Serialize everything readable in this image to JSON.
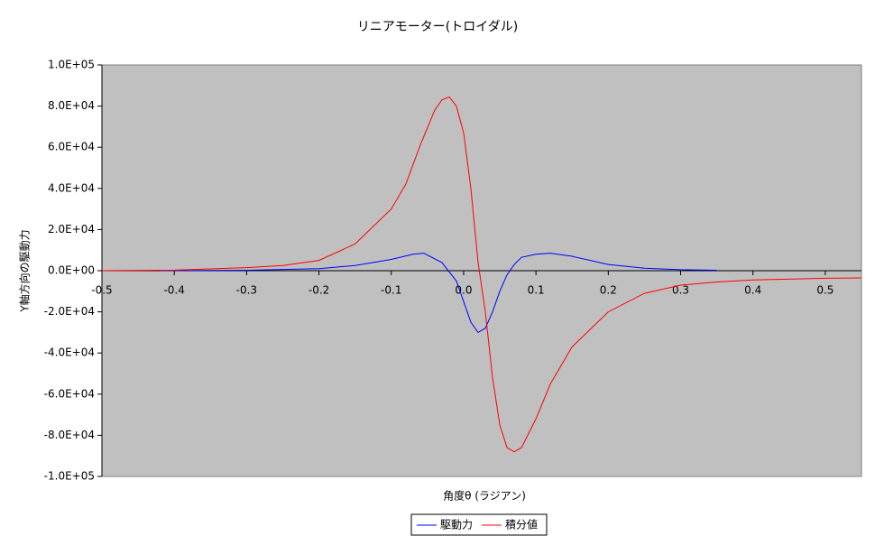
{
  "chart_data": {
    "type": "line",
    "title": "リニアモーター(トロイダル)",
    "x_label": "角度θ (ラジアン)",
    "y_label": "Y軸方向の駆動力",
    "xlim": [
      -0.5,
      0.55
    ],
    "ylim": [
      -100000,
      100000
    ],
    "xticks": [
      -0.5,
      -0.4,
      -0.3,
      -0.2,
      -0.1,
      {
        "value": 0,
        "label": "0.0"
      },
      0.1,
      0.2,
      0.3,
      0.4,
      0.5
    ],
    "yticks": [
      {
        "value": -100000,
        "label": "-1.0E+05"
      },
      {
        "value": -80000,
        "label": "-8.0E+04"
      },
      {
        "value": -60000,
        "label": "-6.0E+04"
      },
      {
        "value": -40000,
        "label": "-4.0E+04"
      },
      {
        "value": -20000,
        "label": "-2.0E+04"
      },
      {
        "value": 0,
        "label": "0.0E+00"
      },
      {
        "value": 20000,
        "label": "2.0E+04"
      },
      {
        "value": 40000,
        "label": "4.0E+04"
      },
      {
        "value": 60000,
        "label": "6.0E+04"
      },
      {
        "value": 80000,
        "label": "8.0E+04"
      },
      {
        "value": 100000,
        "label": "1.0E+05"
      }
    ],
    "plot_background": "#c0c0c0",
    "legend": "bottom",
    "series": [
      {
        "name": "駆動力",
        "color": "#0000ff",
        "x": [
          -0.42,
          -0.3,
          -0.2,
          -0.15,
          -0.1,
          -0.07,
          -0.055,
          -0.03,
          -0.01,
          0,
          0.01,
          0.02,
          0.03,
          0.04,
          0.05,
          0.06,
          0.07,
          0.08,
          0.1,
          0.12,
          0.15,
          0.2,
          0.25,
          0.3,
          0.35
        ],
        "values": [
          0,
          200,
          1000,
          2500,
          5500,
          8000,
          8500,
          4000,
          -5000,
          -15000,
          -25000,
          -30000,
          -28000,
          -20000,
          -10000,
          -2000,
          3000,
          6500,
          8000,
          8500,
          7000,
          3000,
          1200,
          500,
          200
        ]
      },
      {
        "name": "積分値",
        "color": "#ff0000",
        "x": [
          -0.5,
          -0.4,
          -0.3,
          -0.25,
          -0.2,
          -0.15,
          -0.1,
          -0.08,
          -0.06,
          -0.04,
          -0.03,
          -0.02,
          -0.01,
          0,
          0.01,
          0.02,
          0.03,
          0.04,
          0.05,
          0.06,
          0.07,
          0.08,
          0.1,
          0.12,
          0.15,
          0.2,
          0.25,
          0.3,
          0.35,
          0.4,
          0.5,
          0.55
        ],
        "values": [
          0,
          300,
          1500,
          2500,
          5000,
          13000,
          30000,
          42000,
          61000,
          78000,
          83000,
          84500,
          80000,
          67000,
          40000,
          4000,
          -20000,
          -52000,
          -75000,
          -86000,
          -88000,
          -86000,
          -72000,
          -55000,
          -37000,
          -20000,
          -11000,
          -7000,
          -5500,
          -4500,
          -3700,
          -3500
        ]
      }
    ]
  }
}
